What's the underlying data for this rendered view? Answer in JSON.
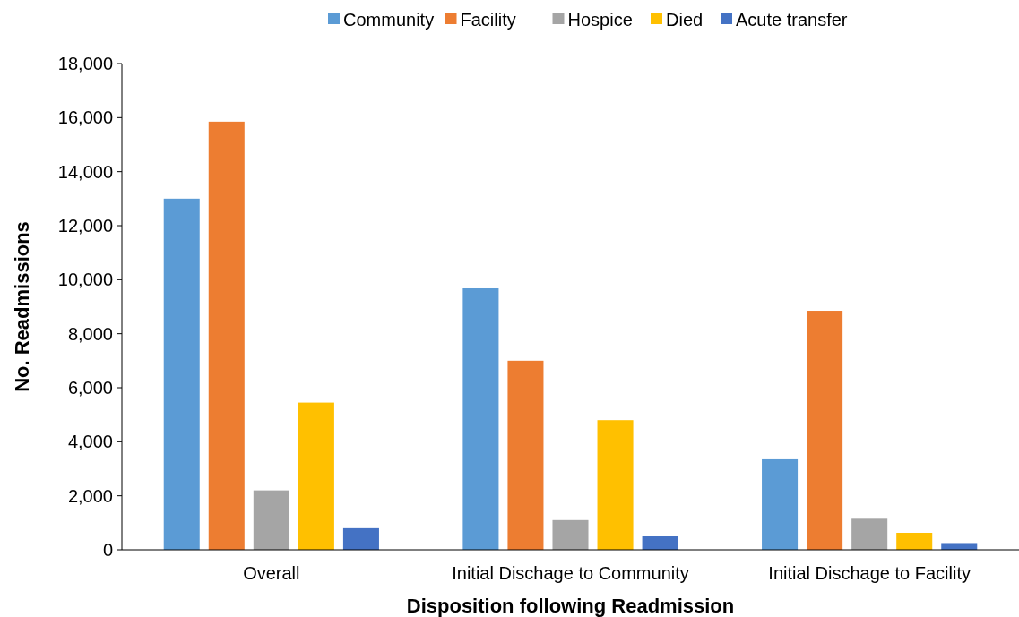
{
  "chart_data": {
    "type": "bar",
    "xlabel": "Disposition following Readmission",
    "ylabel": "No. Readmissions",
    "categories": [
      "Overall",
      "Initial Dischage to Community",
      "Initial Dischage to Facility"
    ],
    "series": [
      {
        "name": "Community",
        "color": "#5b9bd5",
        "values": [
          13000,
          9680,
          3350
        ]
      },
      {
        "name": "Facility",
        "color": "#ed7d31",
        "values": [
          15850,
          7000,
          8850
        ]
      },
      {
        "name": "Hospice",
        "color": "#a5a5a5",
        "values": [
          2200,
          1100,
          1150
        ]
      },
      {
        "name": "Died",
        "color": "#ffc000",
        "values": [
          5450,
          4800,
          630
        ]
      },
      {
        "name": "Acute transfer",
        "color": "#4472c4",
        "values": [
          800,
          530,
          250
        ]
      }
    ],
    "ylim": [
      0,
      18000
    ],
    "yticks": [
      {
        "value": 0,
        "label": "0"
      },
      {
        "value": 2000,
        "label": "2,000"
      },
      {
        "value": 4000,
        "label": "4,000"
      },
      {
        "value": 6000,
        "label": "6,000"
      },
      {
        "value": 8000,
        "label": "8,000"
      },
      {
        "value": 10000,
        "label": "10,000"
      },
      {
        "value": 12000,
        "label": "12,000"
      },
      {
        "value": 14000,
        "label": "14,000"
      },
      {
        "value": 16000,
        "label": "16,000"
      },
      {
        "value": 18000,
        "label": "18,000"
      }
    ],
    "grid": false,
    "legend": "top"
  }
}
